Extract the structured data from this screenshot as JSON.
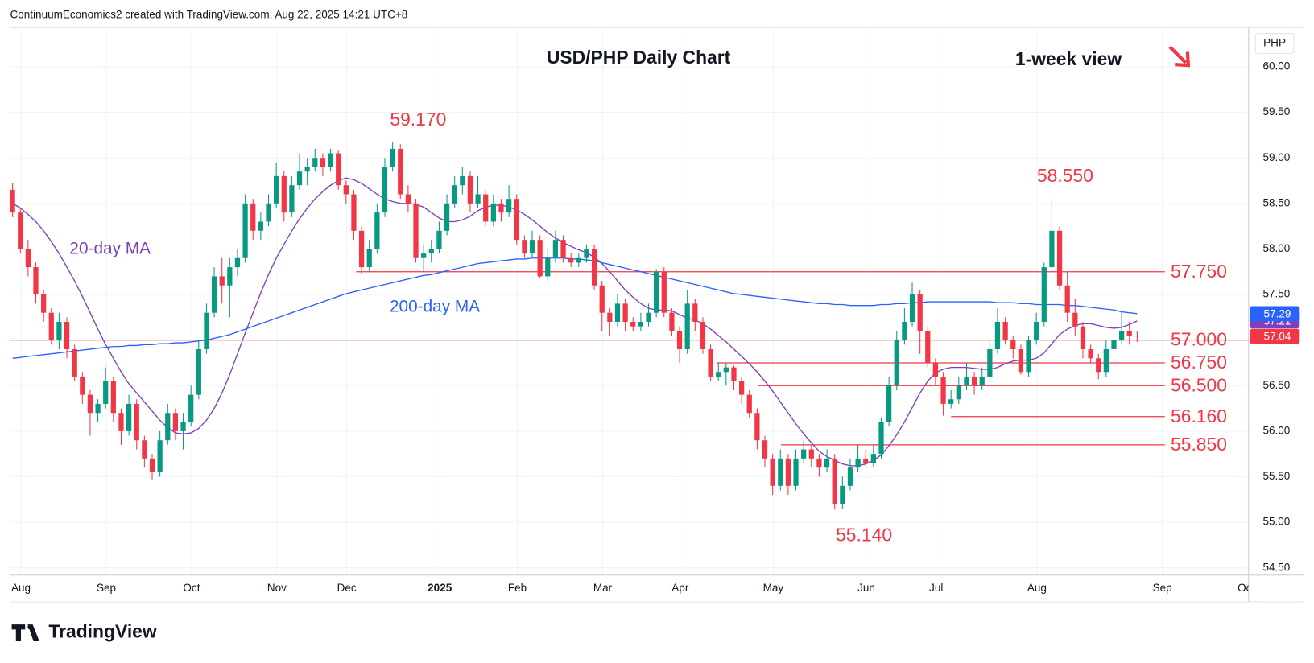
{
  "header": "ContinuumEconomics2 created with TradingView.com, Aug 22, 2025 14:21 UTC+8",
  "logo": "TradingView",
  "chart_data": {
    "type": "candlestick",
    "title": "USD/PHP Daily Chart",
    "subtitle": "1-week view",
    "currency": "PHP",
    "up_color": "#089981",
    "down_color": "#f23645",
    "ylim": [
      54.42,
      60.43
    ],
    "yticks": [
      {
        "value": 54.5,
        "label": "54.50"
      },
      {
        "value": 55.0,
        "label": "55.00"
      },
      {
        "value": 55.5,
        "label": "55.50"
      },
      {
        "value": 56.0,
        "label": "56.00"
      },
      {
        "value": 56.5,
        "label": "56.50"
      },
      {
        "value": 57.0,
        "label": "57.00"
      },
      {
        "value": 57.5,
        "label": "57.50"
      },
      {
        "value": 58.0,
        "label": "58.00"
      },
      {
        "value": 58.5,
        "label": "58.50"
      },
      {
        "value": 59.0,
        "label": "59.00"
      },
      {
        "value": 59.5,
        "label": "59.50"
      },
      {
        "value": 60.0,
        "label": "60.00"
      }
    ],
    "grid": true,
    "categories": [
      "Aug",
      null,
      null,
      null,
      null,
      null,
      null,
      null,
      null,
      null,
      null,
      "Sep",
      null,
      null,
      null,
      null,
      null,
      null,
      null,
      null,
      null,
      null,
      "Oct",
      null,
      null,
      null,
      null,
      null,
      null,
      null,
      null,
      null,
      null,
      "Nov",
      null,
      null,
      null,
      null,
      null,
      null,
      null,
      null,
      "Dec",
      null,
      null,
      null,
      null,
      null,
      null,
      null,
      null,
      null,
      null,
      null,
      "2025",
      null,
      null,
      null,
      null,
      null,
      null,
      null,
      null,
      null,
      "Feb",
      null,
      null,
      null,
      null,
      null,
      null,
      null,
      null,
      null,
      null,
      "Mar",
      null,
      null,
      null,
      null,
      null,
      null,
      null,
      null,
      null,
      "Apr",
      null,
      null,
      null,
      null,
      null,
      null,
      null,
      null,
      null,
      null,
      null,
      "May",
      null,
      null,
      null,
      null,
      null,
      null,
      null,
      null,
      null,
      null,
      null,
      "Jun",
      null,
      null,
      null,
      null,
      null,
      null,
      null,
      null,
      "Jul",
      null,
      null,
      null,
      null,
      null,
      null,
      null,
      null,
      null,
      null,
      null,
      null,
      "Aug",
      null,
      null,
      null,
      null,
      null,
      null,
      null,
      null,
      null,
      null,
      null,
      null,
      null,
      null
    ],
    "future_axis_labels": [
      "Sep",
      "Oct"
    ],
    "candles": [
      [
        58.65,
        58.72,
        58.35,
        58.4
      ],
      [
        58.4,
        58.45,
        57.95,
        58.0
      ],
      [
        58.0,
        58.1,
        57.7,
        57.8
      ],
      [
        57.8,
        57.85,
        57.4,
        57.5
      ],
      [
        57.5,
        57.55,
        57.2,
        57.3
      ],
      [
        57.3,
        57.35,
        56.95,
        57.0
      ],
      [
        57.0,
        57.3,
        56.9,
        57.2
      ],
      [
        57.2,
        57.25,
        56.8,
        56.9
      ],
      [
        56.9,
        56.95,
        56.55,
        56.6
      ],
      [
        56.6,
        56.65,
        56.3,
        56.4
      ],
      [
        56.4,
        56.45,
        55.95,
        56.2
      ],
      [
        56.2,
        56.35,
        56.1,
        56.3
      ],
      [
        56.3,
        56.7,
        56.25,
        56.55
      ],
      [
        56.55,
        56.6,
        56.1,
        56.2
      ],
      [
        56.2,
        56.25,
        55.85,
        56.0
      ],
      [
        56.0,
        56.4,
        55.95,
        56.3
      ],
      [
        56.3,
        56.35,
        55.8,
        55.9
      ],
      [
        55.9,
        55.95,
        55.6,
        55.7
      ],
      [
        55.7,
        55.75,
        55.47,
        55.55
      ],
      [
        55.55,
        56.0,
        55.5,
        55.9
      ],
      [
        55.9,
        56.3,
        55.85,
        56.2
      ],
      [
        56.2,
        56.25,
        55.9,
        56.0
      ],
      [
        56.0,
        56.2,
        55.8,
        56.1
      ],
      [
        56.1,
        56.5,
        56.05,
        56.4
      ],
      [
        56.4,
        57.0,
        56.35,
        56.9
      ],
      [
        56.9,
        57.4,
        56.85,
        57.3
      ],
      [
        57.3,
        57.8,
        57.25,
        57.7
      ],
      [
        57.7,
        57.9,
        57.4,
        57.6
      ],
      [
        57.6,
        57.9,
        57.25,
        57.8
      ],
      [
        57.8,
        58.0,
        57.7,
        57.9
      ],
      [
        57.9,
        58.6,
        57.85,
        58.5
      ],
      [
        58.5,
        58.55,
        58.1,
        58.2
      ],
      [
        58.2,
        58.4,
        58.1,
        58.3
      ],
      [
        58.3,
        58.6,
        58.25,
        58.5
      ],
      [
        58.5,
        58.95,
        58.45,
        58.8
      ],
      [
        58.8,
        58.85,
        58.3,
        58.4
      ],
      [
        58.4,
        58.8,
        58.35,
        58.7
      ],
      [
        58.7,
        59.05,
        58.65,
        58.85
      ],
      [
        58.85,
        59.0,
        58.7,
        58.9
      ],
      [
        58.9,
        59.1,
        58.85,
        59.0
      ],
      [
        59.0,
        59.05,
        58.8,
        58.9
      ],
      [
        58.9,
        59.1,
        58.85,
        59.05
      ],
      [
        59.05,
        59.08,
        58.65,
        58.7
      ],
      [
        58.7,
        58.75,
        58.5,
        58.6
      ],
      [
        58.6,
        58.65,
        58.1,
        58.2
      ],
      [
        58.2,
        58.25,
        57.72,
        57.8
      ],
      [
        57.8,
        58.1,
        57.75,
        58.0
      ],
      [
        58.0,
        58.5,
        57.95,
        58.4
      ],
      [
        58.4,
        59.0,
        58.35,
        58.9
      ],
      [
        58.9,
        59.17,
        58.85,
        59.1
      ],
      [
        59.1,
        59.15,
        58.55,
        58.6
      ],
      [
        58.6,
        58.7,
        58.4,
        58.5
      ],
      [
        58.5,
        58.55,
        57.85,
        57.9
      ],
      [
        57.9,
        58.05,
        57.75,
        57.95
      ],
      [
        57.95,
        58.1,
        57.85,
        58.0
      ],
      [
        58.0,
        58.3,
        57.95,
        58.2
      ],
      [
        58.2,
        58.6,
        58.15,
        58.5
      ],
      [
        58.5,
        58.8,
        58.45,
        58.7
      ],
      [
        58.7,
        58.9,
        58.6,
        58.8
      ],
      [
        58.8,
        58.85,
        58.4,
        58.5
      ],
      [
        58.5,
        58.8,
        58.45,
        58.6
      ],
      [
        58.6,
        58.65,
        58.25,
        58.3
      ],
      [
        58.3,
        58.6,
        58.25,
        58.5
      ],
      [
        58.5,
        58.55,
        58.3,
        58.4
      ],
      [
        58.4,
        58.7,
        58.35,
        58.55
      ],
      [
        58.55,
        58.6,
        58.05,
        58.1
      ],
      [
        58.1,
        58.15,
        57.9,
        57.95
      ],
      [
        57.95,
        58.2,
        57.9,
        58.1
      ],
      [
        58.1,
        58.15,
        57.68,
        57.7
      ],
      [
        57.7,
        58.0,
        57.65,
        57.9
      ],
      [
        57.9,
        58.2,
        57.85,
        58.1
      ],
      [
        58.1,
        58.15,
        57.85,
        57.9
      ],
      [
        57.9,
        57.95,
        57.8,
        57.85
      ],
      [
        57.85,
        57.95,
        57.8,
        57.9
      ],
      [
        57.9,
        58.05,
        57.85,
        58.0
      ],
      [
        58.0,
        58.05,
        57.55,
        57.6
      ],
      [
        57.6,
        57.65,
        57.1,
        57.3
      ],
      [
        57.3,
        57.35,
        57.05,
        57.2
      ],
      [
        57.2,
        57.5,
        57.15,
        57.4
      ],
      [
        57.4,
        57.45,
        57.1,
        57.2
      ],
      [
        57.2,
        57.25,
        57.1,
        57.15
      ],
      [
        57.15,
        57.3,
        57.1,
        57.2
      ],
      [
        57.2,
        57.4,
        57.15,
        57.3
      ],
      [
        57.3,
        57.78,
        57.25,
        57.75
      ],
      [
        57.75,
        57.8,
        57.25,
        57.3
      ],
      [
        57.3,
        57.35,
        57.05,
        57.1
      ],
      [
        57.1,
        57.15,
        56.75,
        56.9
      ],
      [
        56.9,
        57.55,
        56.85,
        57.4
      ],
      [
        57.4,
        57.45,
        57.1,
        57.2
      ],
      [
        57.2,
        57.25,
        56.85,
        56.9
      ],
      [
        56.9,
        56.95,
        56.55,
        56.6
      ],
      [
        56.6,
        56.75,
        56.55,
        56.65
      ],
      [
        56.65,
        56.75,
        56.5,
        56.7
      ],
      [
        56.7,
        56.72,
        56.45,
        56.55
      ],
      [
        56.55,
        56.6,
        56.3,
        56.4
      ],
      [
        56.4,
        56.45,
        56.15,
        56.2
      ],
      [
        56.2,
        56.25,
        55.8,
        55.9
      ],
      [
        55.9,
        55.95,
        55.6,
        55.7
      ],
      [
        55.7,
        55.75,
        55.3,
        55.4
      ],
      [
        55.4,
        55.8,
        55.35,
        55.7
      ],
      [
        55.7,
        55.75,
        55.3,
        55.4
      ],
      [
        55.4,
        55.8,
        55.35,
        55.7
      ],
      [
        55.7,
        55.9,
        55.65,
        55.8
      ],
      [
        55.8,
        55.85,
        55.6,
        55.7
      ],
      [
        55.7,
        55.75,
        55.5,
        55.6
      ],
      [
        55.6,
        55.8,
        55.55,
        55.7
      ],
      [
        55.7,
        55.75,
        55.14,
        55.2
      ],
      [
        55.2,
        55.5,
        55.15,
        55.4
      ],
      [
        55.4,
        55.7,
        55.35,
        55.6
      ],
      [
        55.6,
        55.85,
        55.55,
        55.7
      ],
      [
        55.7,
        55.8,
        55.6,
        55.65
      ],
      [
        55.65,
        55.85,
        55.6,
        55.75
      ],
      [
        55.75,
        56.15,
        55.7,
        56.1
      ],
      [
        56.1,
        56.6,
        56.05,
        56.5
      ],
      [
        56.5,
        57.1,
        56.45,
        57.0
      ],
      [
        57.0,
        57.35,
        56.95,
        57.2
      ],
      [
        57.2,
        57.63,
        57.15,
        57.5
      ],
      [
        57.5,
        57.55,
        56.85,
        57.1
      ],
      [
        57.1,
        57.15,
        56.7,
        56.75
      ],
      [
        56.75,
        56.8,
        56.5,
        56.6
      ],
      [
        56.6,
        56.65,
        56.17,
        56.3
      ],
      [
        56.3,
        56.45,
        56.25,
        56.35
      ],
      [
        56.35,
        56.6,
        56.3,
        56.5
      ],
      [
        56.5,
        56.75,
        56.45,
        56.6
      ],
      [
        56.6,
        56.65,
        56.4,
        56.5
      ],
      [
        56.5,
        56.7,
        56.45,
        56.6
      ],
      [
        56.6,
        57.0,
        56.55,
        56.9
      ],
      [
        56.9,
        57.35,
        56.85,
        57.2
      ],
      [
        57.2,
        57.25,
        56.95,
        57.0
      ],
      [
        57.0,
        57.05,
        56.8,
        56.9
      ],
      [
        56.9,
        56.95,
        56.62,
        56.65
      ],
      [
        56.65,
        57.05,
        56.6,
        57.0
      ],
      [
        57.0,
        57.3,
        56.95,
        57.2
      ],
      [
        57.2,
        57.85,
        57.15,
        57.8
      ],
      [
        57.8,
        58.55,
        57.75,
        58.2
      ],
      [
        58.2,
        58.25,
        57.55,
        57.6
      ],
      [
        57.6,
        57.75,
        57.2,
        57.3
      ],
      [
        57.3,
        57.45,
        57.05,
        57.15
      ],
      [
        57.15,
        57.2,
        56.8,
        56.9
      ],
      [
        56.9,
        56.95,
        56.75,
        56.8
      ],
      [
        56.8,
        56.85,
        56.57,
        56.65
      ],
      [
        56.65,
        57.0,
        56.6,
        56.9
      ],
      [
        56.9,
        57.15,
        56.85,
        57.0
      ],
      [
        57.0,
        57.33,
        56.95,
        57.1
      ],
      [
        57.1,
        57.2,
        56.95,
        57.05
      ],
      [
        57.05,
        57.1,
        56.98,
        57.04
      ]
    ],
    "series": [
      {
        "name": "20-day MA",
        "color": "#7e3fbf",
        "values": [
          58.5,
          58.45,
          58.38,
          58.3,
          58.2,
          58.08,
          57.95,
          57.8,
          57.65,
          57.48,
          57.3,
          57.12,
          56.95,
          56.8,
          56.65,
          56.52,
          56.42,
          56.32,
          56.22,
          56.12,
          56.04,
          55.98,
          55.97,
          55.98,
          56.03,
          56.12,
          56.25,
          56.42,
          56.62,
          56.85,
          57.08,
          57.3,
          57.52,
          57.72,
          57.9,
          58.05,
          58.2,
          58.33,
          58.45,
          58.55,
          58.63,
          58.7,
          58.75,
          58.78,
          58.76,
          58.72,
          58.66,
          58.6,
          58.55,
          58.52,
          58.5,
          58.5,
          58.49,
          58.46,
          58.4,
          58.34,
          58.3,
          58.3,
          58.32,
          58.36,
          58.42,
          58.46,
          58.48,
          58.48,
          58.46,
          58.43,
          58.38,
          58.32,
          58.25,
          58.18,
          58.12,
          58.07,
          58.03,
          57.99,
          57.96,
          57.91,
          57.84,
          57.75,
          57.65,
          57.55,
          57.47,
          57.4,
          57.35,
          57.33,
          57.33,
          57.32,
          57.28,
          57.24,
          57.22,
          57.18,
          57.12,
          57.05,
          56.98,
          56.9,
          56.82,
          56.74,
          56.65,
          56.55,
          56.44,
          56.32,
          56.2,
          56.08,
          55.97,
          55.87,
          55.78,
          55.72,
          55.68,
          55.64,
          55.62,
          55.62,
          55.64,
          55.68,
          55.74,
          55.84,
          55.96,
          56.1,
          56.26,
          56.42,
          56.55,
          56.64,
          56.68,
          56.7,
          56.7,
          56.7,
          56.69,
          56.68,
          56.68,
          56.7,
          56.74,
          56.77,
          56.78,
          56.78,
          56.8,
          56.86,
          56.96,
          57.06,
          57.12,
          57.16,
          57.18,
          57.18,
          57.16,
          57.14,
          57.13,
          57.14,
          57.17,
          57.21
        ]
      },
      {
        "name": "200-day MA",
        "color": "#2962ff",
        "values": [
          56.8,
          56.81,
          56.82,
          56.83,
          56.84,
          56.85,
          56.86,
          56.87,
          56.88,
          56.89,
          56.9,
          56.91,
          56.92,
          56.93,
          56.93,
          56.94,
          56.94,
          56.95,
          56.95,
          56.96,
          56.96,
          56.97,
          56.97,
          56.98,
          56.99,
          57.0,
          57.02,
          57.04,
          57.06,
          57.09,
          57.12,
          57.15,
          57.18,
          57.21,
          57.24,
          57.27,
          57.3,
          57.33,
          57.36,
          57.39,
          57.42,
          57.45,
          57.48,
          57.51,
          57.53,
          57.55,
          57.57,
          57.59,
          57.61,
          57.63,
          57.65,
          57.67,
          57.69,
          57.71,
          57.72,
          57.74,
          57.76,
          57.78,
          57.8,
          57.82,
          57.84,
          57.85,
          57.86,
          57.87,
          57.88,
          57.89,
          57.89,
          57.9,
          57.9,
          57.9,
          57.9,
          57.9,
          57.89,
          57.89,
          57.88,
          57.87,
          57.85,
          57.83,
          57.81,
          57.79,
          57.77,
          57.75,
          57.73,
          57.71,
          57.69,
          57.67,
          57.65,
          57.63,
          57.61,
          57.59,
          57.57,
          57.55,
          57.53,
          57.51,
          57.5,
          57.49,
          57.48,
          57.47,
          57.46,
          57.45,
          57.44,
          57.43,
          57.42,
          57.41,
          57.4,
          57.4,
          57.39,
          57.39,
          57.38,
          57.38,
          57.38,
          57.38,
          57.39,
          57.39,
          57.4,
          57.4,
          57.41,
          57.41,
          57.42,
          57.42,
          57.42,
          57.42,
          57.42,
          57.42,
          57.42,
          57.42,
          57.42,
          57.41,
          57.41,
          57.41,
          57.4,
          57.4,
          57.39,
          57.39,
          57.39,
          57.39,
          57.38,
          57.38,
          57.37,
          57.36,
          57.35,
          57.34,
          57.33,
          57.31,
          57.3,
          57.29
        ]
      }
    ],
    "levels": [
      {
        "value": 57.75,
        "label": "57.750"
      },
      {
        "value": 57.0,
        "label": "57.000"
      },
      {
        "value": 56.75,
        "label": "56.750"
      },
      {
        "value": 56.5,
        "label": "56.500"
      },
      {
        "value": 56.16,
        "label": "56.160"
      },
      {
        "value": 55.85,
        "label": "55.850"
      }
    ],
    "level_color": "#f23645",
    "annotations": [
      {
        "value": 59.17,
        "label": "59.170"
      },
      {
        "value": 58.55,
        "label": "58.550"
      },
      {
        "value": 55.14,
        "label": "55.140"
      }
    ]
  }
}
